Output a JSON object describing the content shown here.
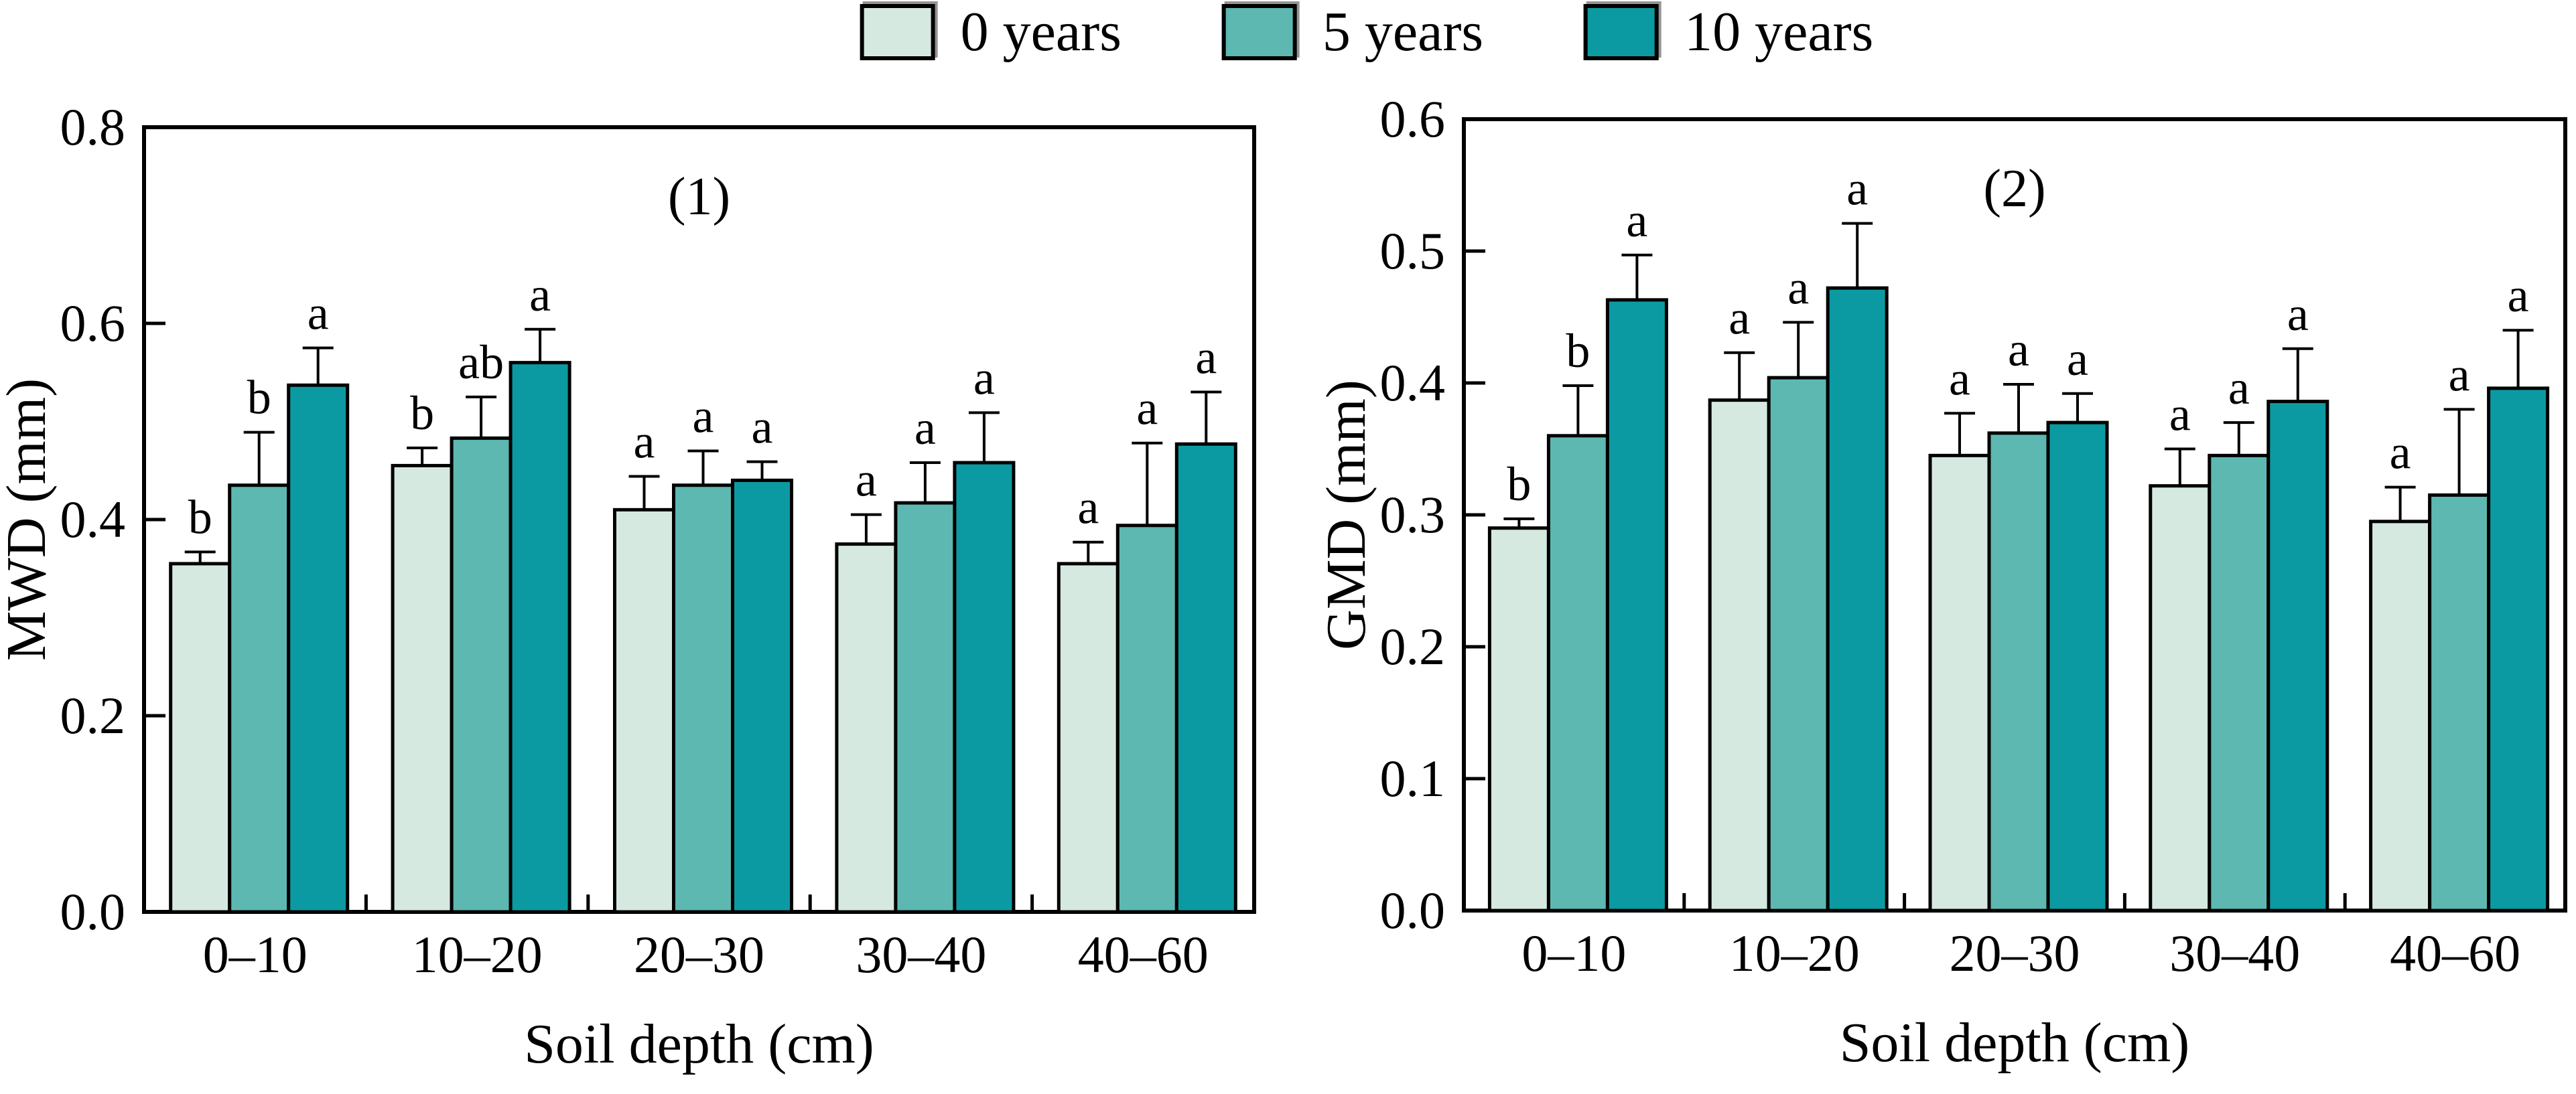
{
  "legend": {
    "items": [
      {
        "label": "0 years",
        "swatch_color": "#d6e9e0"
      },
      {
        "label": "5 years",
        "swatch_color": "#5cb8b1"
      },
      {
        "label": "10 years",
        "swatch_color": "#0c9aa2"
      }
    ]
  },
  "chart_data": [
    {
      "type": "bar",
      "panel_label": "(1)",
      "ylabel": "MWD (mm)",
      "xlabel": "Soil depth (cm)",
      "ylim": [
        0,
        0.8
      ],
      "ytick_labels": [
        "0.0",
        "0.2",
        "0.4",
        "0.6",
        "0.8"
      ],
      "categories": [
        "0–10",
        "10–20",
        "20–30",
        "30–40",
        "40–60"
      ],
      "grid": false,
      "legend_position": "top",
      "series": [
        {
          "name": "0 years",
          "color": "#d6e9e0",
          "values": [
            0.355,
            0.455,
            0.41,
            0.375,
            0.355
          ],
          "errors": [
            0.012,
            0.018,
            0.034,
            0.03,
            0.022
          ],
          "letters": [
            "b",
            "b",
            "a",
            "a",
            "a"
          ]
        },
        {
          "name": "5 years",
          "color": "#5cb8b1",
          "values": [
            0.435,
            0.483,
            0.435,
            0.417,
            0.394
          ],
          "errors": [
            0.054,
            0.042,
            0.035,
            0.041,
            0.084
          ],
          "letters": [
            "b",
            "ab",
            "a",
            "a",
            "a"
          ]
        },
        {
          "name": "10 years",
          "color": "#0c9aa2",
          "values": [
            0.537,
            0.56,
            0.44,
            0.458,
            0.477
          ],
          "errors": [
            0.038,
            0.034,
            0.019,
            0.051,
            0.053
          ],
          "letters": [
            "a",
            "a",
            "a",
            "a",
            "a"
          ]
        }
      ]
    },
    {
      "type": "bar",
      "panel_label": "(2)",
      "ylabel": "GMD (mm)",
      "xlabel": "Soil depth (cm)",
      "ylim": [
        0,
        0.6
      ],
      "ytick_labels": [
        "0.0",
        "0.1",
        "0.2",
        "0.3",
        "0.4",
        "0.5",
        "0.6"
      ],
      "categories": [
        "0–10",
        "10–20",
        "20–30",
        "30–40",
        "40–60"
      ],
      "grid": false,
      "legend_position": "top",
      "series": [
        {
          "name": "0 years",
          "color": "#d6e9e0",
          "values": [
            0.29,
            0.387,
            0.345,
            0.322,
            0.295
          ],
          "errors": [
            0.007,
            0.036,
            0.032,
            0.028,
            0.026
          ],
          "letters": [
            "b",
            "a",
            "a",
            "a",
            "a"
          ]
        },
        {
          "name": "5 years",
          "color": "#5cb8b1",
          "values": [
            0.36,
            0.404,
            0.362,
            0.345,
            0.315
          ],
          "errors": [
            0.038,
            0.042,
            0.037,
            0.025,
            0.065
          ],
          "letters": [
            "b",
            "a",
            "a",
            "a",
            "a"
          ]
        },
        {
          "name": "10 years",
          "color": "#0c9aa2",
          "values": [
            0.463,
            0.472,
            0.37,
            0.386,
            0.396
          ],
          "errors": [
            0.034,
            0.049,
            0.022,
            0.04,
            0.044
          ],
          "letters": [
            "a",
            "a",
            "a",
            "a",
            "a"
          ]
        }
      ]
    }
  ]
}
